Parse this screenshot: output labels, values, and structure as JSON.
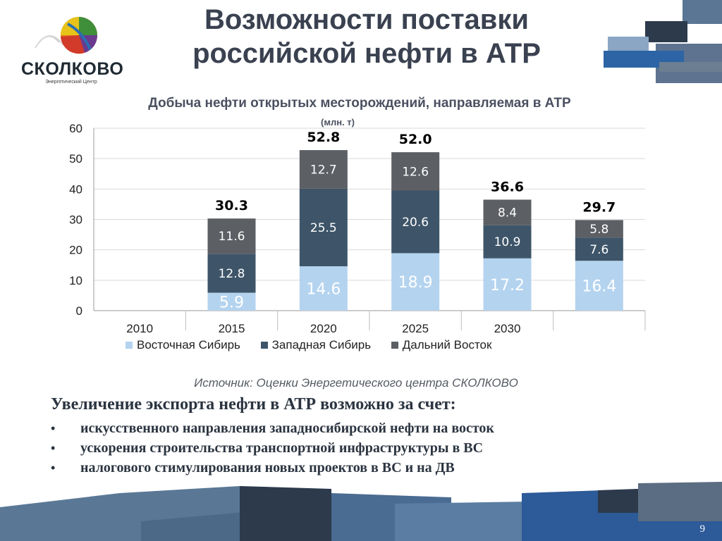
{
  "slide": {
    "title_line1": "Возможности поставки",
    "title_line2": "российской нефти в АТР",
    "page_number": "9"
  },
  "logo": {
    "name": "СКОЛКОВО",
    "subtitle": "Энергетический Центр"
  },
  "chart_data": {
    "type": "bar",
    "stacked": true,
    "title": "Добыча нефти открытых месторождений, направляемая в АТР",
    "subtitle": "(млн. т)",
    "categories": [
      "2010",
      "2015",
      "2020",
      "2025",
      "2030",
      ""
    ],
    "series": [
      {
        "name": "Восточная Сибирь",
        "color": "#b4d3ef",
        "values": [
          null,
          5.9,
          14.6,
          18.9,
          17.2,
          16.4
        ]
      },
      {
        "name": "Западная Сибирь",
        "color": "#3e5569",
        "values": [
          null,
          12.8,
          25.5,
          20.6,
          10.9,
          7.6
        ]
      },
      {
        "name": "Дальний Восток",
        "color": "#5c5f64",
        "values": [
          null,
          11.6,
          12.7,
          12.6,
          8.4,
          5.8
        ]
      }
    ],
    "totals": [
      "",
      "30.3",
      "52.8",
      "52.0",
      "36.6",
      "29.7"
    ],
    "ylim": [
      0,
      60
    ],
    "yticks": [
      "0",
      "10",
      "20",
      "30",
      "40",
      "50",
      "60"
    ],
    "grid": true,
    "legend_position": "bottom"
  },
  "source_text": "Источник: Оценки Энергетического центра СКОЛКОВО",
  "bullets": {
    "heading": "Увеличение экспорта нефти в АТР возможно за счет:",
    "items": [
      "искусственного направления западносибирской нефти на восток",
      "ускорения строительства транспортной инфраструктуры в ВС",
      "налогового стимулирования новых проектов в ВС и на ДВ"
    ]
  },
  "colors": {
    "title": "#3a4150",
    "accent_dark": "#2f3d4d",
    "accent_blue": "#2f63a8",
    "accent_light": "#6b87a6"
  }
}
